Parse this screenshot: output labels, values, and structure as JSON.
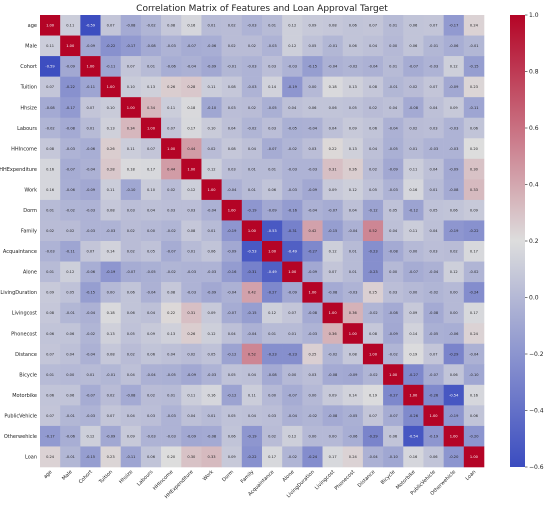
{
  "chart_data": {
    "type": "heatmap",
    "title": "Correlation Matrix of Features and Loan Approval Target",
    "labels": [
      "age",
      "Male",
      "Cohort",
      "Tuition",
      "Hhsize",
      "Labours",
      "HHIncome",
      "HHExpenditure",
      "Work",
      "Dorm",
      "Family",
      "Acquaintance",
      "Alone",
      "LivingDuration",
      "Livingcost",
      "Phonecost",
      "Distance",
      "Bicycle",
      "Motorbike",
      "PublicVehicle",
      "Otherwehicle",
      "Loan"
    ],
    "matrix": [
      [
        1.0,
        0.11,
        -0.59,
        0.07,
        -0.08,
        -0.02,
        0.08,
        0.16,
        0.01,
        0.02,
        -0.03,
        0.01,
        0.12,
        0.09,
        0.08,
        0.06,
        0.07,
        0.01,
        0.06,
        0.07,
        -0.17,
        0.24
      ],
      [
        0.11,
        1.0,
        -0.09,
        -0.22,
        -0.17,
        -0.08,
        -0.03,
        -0.07,
        -0.06,
        0.02,
        0.02,
        -0.03,
        0.12,
        0.05,
        -0.01,
        0.06,
        0.04,
        0.0,
        0.06,
        -0.01,
        -0.06,
        -0.01
      ],
      [
        -0.59,
        -0.09,
        1.0,
        -0.11,
        0.07,
        0.01,
        -0.06,
        -0.04,
        -0.09,
        -0.01,
        -0.03,
        0.03,
        -0.03,
        -0.15,
        -0.04,
        -0.02,
        -0.04,
        0.01,
        -0.07,
        -0.03,
        0.12,
        -0.15
      ],
      [
        0.07,
        -0.22,
        -0.11,
        1.0,
        0.1,
        0.13,
        0.26,
        0.28,
        0.11,
        0.08,
        -0.03,
        0.14,
        -0.19,
        0.0,
        0.18,
        0.13,
        0.08,
        -0.01,
        0.02,
        0.07,
        -0.09,
        0.23
      ],
      [
        -0.08,
        -0.17,
        0.07,
        0.1,
        1.0,
        0.34,
        0.11,
        0.18,
        -0.1,
        0.03,
        0.02,
        -0.05,
        0.04,
        0.06,
        0.06,
        0.05,
        0.02,
        0.04,
        -0.08,
        0.04,
        0.09,
        -0.11
      ],
      [
        -0.02,
        -0.08,
        0.01,
        0.13,
        0.34,
        1.0,
        0.07,
        0.17,
        0.1,
        0.04,
        -0.02,
        0.03,
        -0.05,
        -0.04,
        0.04,
        0.09,
        0.06,
        -0.04,
        0.02,
        0.03,
        -0.03,
        0.06
      ],
      [
        0.08,
        -0.03,
        -0.06,
        0.26,
        0.11,
        0.07,
        1.0,
        0.44,
        0.02,
        0.08,
        0.04,
        -0.07,
        -0.02,
        0.03,
        0.22,
        0.13,
        0.04,
        -0.05,
        0.01,
        -0.03,
        -0.03,
        0.2
      ],
      [
        0.16,
        -0.07,
        -0.04,
        0.28,
        0.18,
        0.17,
        0.44,
        1.0,
        0.12,
        0.03,
        0.01,
        0.01,
        -0.03,
        -0.03,
        0.31,
        0.26,
        0.02,
        -0.09,
        0.11,
        0.04,
        -0.09,
        0.3
      ],
      [
        0.16,
        -0.06,
        -0.09,
        0.11,
        -0.1,
        0.1,
        0.02,
        0.12,
        1.0,
        -0.04,
        0.01,
        0.06,
        -0.03,
        -0.09,
        0.09,
        0.12,
        0.05,
        -0.03,
        0.16,
        0.01,
        -0.08,
        0.33
      ],
      [
        0.01,
        -0.02,
        -0.03,
        0.08,
        0.03,
        0.04,
        0.03,
        0.03,
        -0.04,
        1.0,
        -0.19,
        -0.09,
        -0.16,
        -0.04,
        -0.07,
        0.04,
        -0.12,
        0.05,
        -0.12,
        0.05,
        0.06,
        0.09
      ],
      [
        0.02,
        0.02,
        -0.03,
        -0.03,
        0.02,
        0.0,
        -0.02,
        0.08,
        0.01,
        -0.19,
        1.0,
        -0.53,
        -0.31,
        0.42,
        -0.15,
        -0.04,
        0.52,
        0.04,
        0.11,
        0.04,
        -0.19,
        -0.22
      ],
      [
        -0.03,
        -0.11,
        0.07,
        0.14,
        0.02,
        0.05,
        -0.07,
        0.01,
        0.06,
        -0.09,
        -0.53,
        1.0,
        -0.49,
        -0.27,
        0.12,
        0.01,
        -0.23,
        -0.08,
        0.0,
        0.03,
        0.02,
        0.17
      ],
      [
        0.01,
        0.12,
        -0.06,
        -0.19,
        -0.07,
        -0.05,
        -0.02,
        -0.03,
        -0.03,
        -0.16,
        -0.31,
        -0.49,
        1.0,
        -0.09,
        0.07,
        0.01,
        -0.23,
        0.0,
        -0.07,
        -0.04,
        0.12,
        -0.02
      ],
      [
        0.09,
        0.05,
        -0.15,
        0.0,
        0.06,
        -0.04,
        0.08,
        -0.03,
        -0.09,
        -0.04,
        0.42,
        -0.27,
        -0.09,
        1.0,
        -0.08,
        -0.03,
        0.25,
        0.03,
        0.0,
        -0.02,
        0.0,
        -0.24
      ],
      [
        0.08,
        -0.01,
        -0.04,
        0.18,
        0.06,
        0.04,
        0.22,
        0.31,
        0.09,
        -0.07,
        -0.15,
        0.12,
        0.07,
        -0.08,
        1.0,
        0.36,
        -0.02,
        -0.08,
        0.09,
        -0.08,
        0.0,
        0.17
      ],
      [
        0.06,
        0.06,
        -0.02,
        0.13,
        0.05,
        0.09,
        0.13,
        0.26,
        0.12,
        0.04,
        -0.04,
        0.01,
        0.01,
        -0.03,
        0.36,
        1.0,
        0.08,
        -0.09,
        0.14,
        -0.05,
        -0.06,
        0.24
      ],
      [
        0.07,
        0.04,
        -0.04,
        0.08,
        0.02,
        0.06,
        0.04,
        0.02,
        0.05,
        -0.12,
        0.52,
        -0.23,
        -0.23,
        0.25,
        -0.02,
        0.08,
        1.0,
        -0.02,
        0.19,
        0.07,
        -0.29,
        -0.04
      ],
      [
        0.01,
        0.0,
        0.01,
        -0.01,
        0.04,
        -0.04,
        -0.05,
        -0.09,
        -0.03,
        0.05,
        0.04,
        -0.08,
        0.0,
        0.03,
        -0.08,
        -0.09,
        -0.02,
        1.0,
        -0.27,
        -0.07,
        0.06,
        -0.1
      ],
      [
        0.06,
        0.06,
        -0.07,
        0.02,
        -0.08,
        0.02,
        0.01,
        0.11,
        0.16,
        -0.12,
        0.11,
        0.0,
        -0.07,
        0.0,
        0.09,
        0.14,
        0.19,
        -0.27,
        1.0,
        -0.26,
        -0.54,
        0.16
      ],
      [
        0.07,
        -0.01,
        -0.03,
        0.07,
        0.04,
        0.03,
        -0.03,
        0.04,
        0.01,
        0.05,
        0.04,
        0.03,
        -0.04,
        -0.02,
        -0.08,
        -0.05,
        0.07,
        -0.07,
        -0.26,
        1.0,
        -0.19,
        0.06
      ],
      [
        -0.17,
        -0.06,
        0.12,
        -0.09,
        0.09,
        -0.03,
        -0.03,
        -0.09,
        -0.08,
        0.06,
        -0.19,
        0.02,
        0.12,
        0.0,
        0.0,
        -0.06,
        -0.29,
        0.06,
        -0.54,
        -0.19,
        1.0,
        -0.2
      ],
      [
        0.24,
        -0.01,
        -0.15,
        0.23,
        -0.11,
        0.06,
        0.2,
        0.3,
        0.33,
        0.09,
        -0.22,
        0.17,
        -0.02,
        -0.24,
        0.17,
        0.24,
        -0.04,
        -0.1,
        0.16,
        0.06,
        -0.2,
        1.0
      ]
    ],
    "colorbar": {
      "min": -0.6,
      "max": 1.0,
      "ticks": [
        -0.6,
        -0.4,
        -0.2,
        0.0,
        0.2,
        0.4,
        0.6,
        0.8,
        1.0
      ],
      "colormap": "coolwarm"
    },
    "colors": {
      "low": "#3b4cc0",
      "mid": "#dddddd",
      "high": "#b40426"
    }
  }
}
